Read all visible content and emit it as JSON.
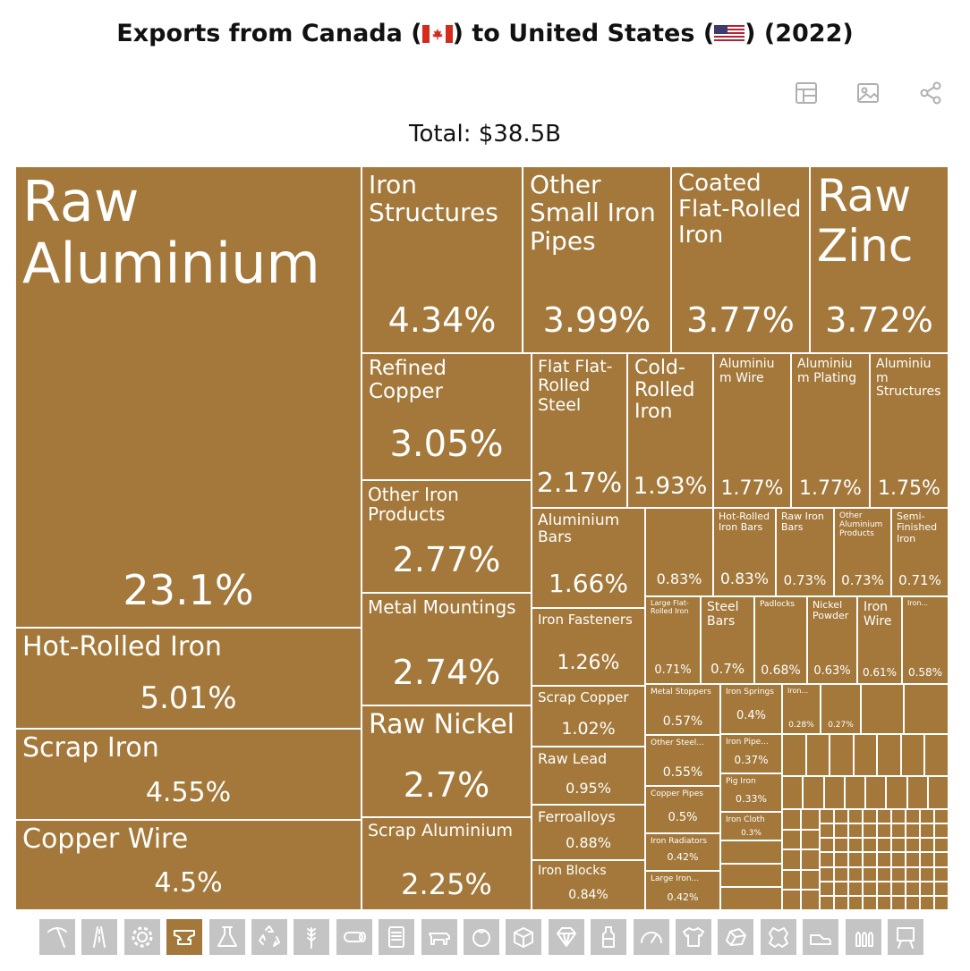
{
  "title": {
    "before": "Exports from Canada (",
    "middle": ") to United States (",
    "after": ") (2022)"
  },
  "toolbar": {
    "icons": [
      "table-icon",
      "image-icon",
      "share-icon"
    ]
  },
  "total_label": "Total: $38.5B",
  "colors": {
    "tile": "#a3783a",
    "category_inactive": "#c4c4c4",
    "category_active": "#a3783a",
    "border": "#ffffff"
  },
  "chart_data": {
    "type": "treemap",
    "title": "Exports from Canada to United States (2022)",
    "total": "Total: $38.5B",
    "items": [
      {
        "name": "Raw Aluminium",
        "pct": "23.1%"
      },
      {
        "name": "Hot-Rolled Iron",
        "pct": "5.01%"
      },
      {
        "name": "Scrap Iron",
        "pct": "4.55%"
      },
      {
        "name": "Copper Wire",
        "pct": "4.5%"
      },
      {
        "name": "Iron Structures",
        "pct": "4.34%"
      },
      {
        "name": "Other Small Iron Pipes",
        "pct": "3.99%"
      },
      {
        "name": "Coated Flat-Rolled Iron",
        "pct": "3.77%"
      },
      {
        "name": "Raw Zinc",
        "pct": "3.72%"
      },
      {
        "name": "Refined Copper",
        "pct": "3.05%"
      },
      {
        "name": "Other Iron Products",
        "pct": "2.77%"
      },
      {
        "name": "Metal Mountings",
        "pct": "2.74%"
      },
      {
        "name": "Raw Nickel",
        "pct": "2.7%"
      },
      {
        "name": "Scrap Aluminium",
        "pct": "2.25%"
      },
      {
        "name": "Flat Flat-Rolled Steel",
        "pct": "2.17%"
      },
      {
        "name": "Cold-Rolled Iron",
        "pct": "1.93%"
      },
      {
        "name": "Aluminium Wire",
        "pct": "1.77%"
      },
      {
        "name": "Aluminium Plating",
        "pct": "1.77%"
      },
      {
        "name": "Aluminium Structures",
        "pct": "1.75%"
      },
      {
        "name": "Aluminium Bars",
        "pct": "1.66%"
      },
      {
        "name": "Iron Fasteners",
        "pct": "1.26%"
      },
      {
        "name": "Scrap Copper",
        "pct": "1.02%"
      },
      {
        "name": "Raw Lead",
        "pct": "0.95%"
      },
      {
        "name": "Ferroalloys",
        "pct": "0.88%"
      },
      {
        "name": "Iron Blocks",
        "pct": "0.84%"
      },
      {
        "name": "",
        "pct": "0.83%"
      },
      {
        "name": "Hot-Rolled Iron Bars",
        "pct": "0.83%"
      },
      {
        "name": "Raw Iron Bars",
        "pct": "0.73%"
      },
      {
        "name": "Other Aluminium Products",
        "pct": "0.73%"
      },
      {
        "name": "Semi-Finished Iron",
        "pct": "0.71%"
      },
      {
        "name": "Large Flat-Rolled Iron",
        "pct": "0.71%"
      },
      {
        "name": "Steel Bars",
        "pct": "0.7%"
      },
      {
        "name": "Padlocks",
        "pct": "0.68%"
      },
      {
        "name": "Nickel Powder",
        "pct": "0.63%"
      },
      {
        "name": "Iron Wire",
        "pct": "0.61%"
      },
      {
        "name": "Iron...",
        "pct": "0.58%"
      },
      {
        "name": "Metal Stoppers",
        "pct": "0.57%"
      },
      {
        "name": "Other Steel...",
        "pct": "0.55%"
      },
      {
        "name": "Copper Pipes",
        "pct": "0.5%"
      },
      {
        "name": "Iron Radiators",
        "pct": "0.42%"
      },
      {
        "name": "Large Iron...",
        "pct": "0.42%"
      },
      {
        "name": "Iron Springs",
        "pct": "0.4%"
      },
      {
        "name": "Iron Pipe...",
        "pct": "0.37%"
      },
      {
        "name": "Pig Iron",
        "pct": "0.33%"
      },
      {
        "name": "Iron Cloth",
        "pct": "0.3%"
      },
      {
        "name": "Iron...",
        "pct": "0.28%"
      },
      {
        "name": "",
        "pct": "0.27%"
      }
    ]
  },
  "categories": [
    {
      "icon": "pickaxe-icon"
    },
    {
      "icon": "road-icon"
    },
    {
      "icon": "gear-icon"
    },
    {
      "icon": "anvil-icon",
      "active": true
    },
    {
      "icon": "flask-icon"
    },
    {
      "icon": "recycle-icon"
    },
    {
      "icon": "wheat-icon"
    },
    {
      "icon": "log-icon"
    },
    {
      "icon": "document-icon"
    },
    {
      "icon": "cow-icon"
    },
    {
      "icon": "tomato-icon"
    },
    {
      "icon": "box-icon"
    },
    {
      "icon": "diamond-icon"
    },
    {
      "icon": "bottle-icon"
    },
    {
      "icon": "gauge-icon"
    },
    {
      "icon": "shirt-icon"
    },
    {
      "icon": "stone-icon"
    },
    {
      "icon": "hide-icon"
    },
    {
      "icon": "shoe-icon"
    },
    {
      "icon": "bullets-icon"
    },
    {
      "icon": "easel-icon"
    }
  ]
}
